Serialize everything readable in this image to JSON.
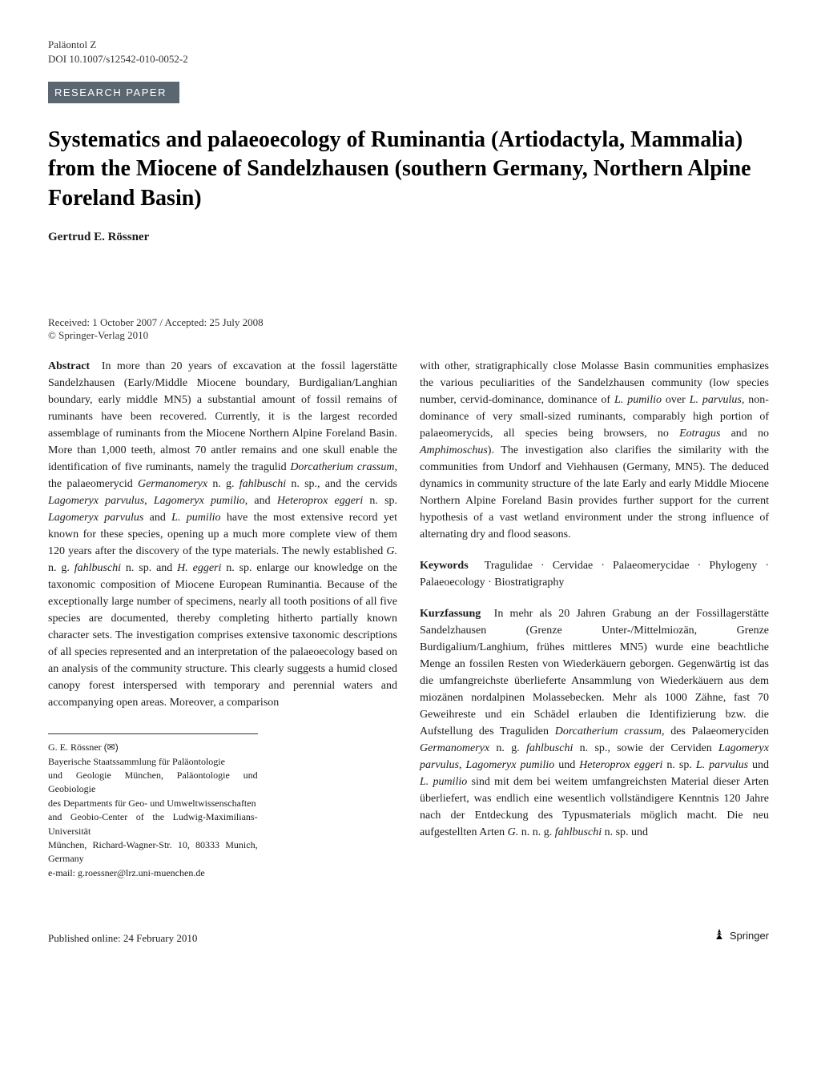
{
  "header": {
    "journal": "Paläontol Z",
    "doi": "DOI 10.1007/s12542-010-0052-2",
    "paper_type": "RESEARCH PAPER"
  },
  "title": "Systematics and palaeoecology of Ruminantia (Artiodactyla, Mammalia) from the Miocene of Sandelzhausen (southern Germany, Northern Alpine Foreland Basin)",
  "author": "Gertrud E. Rössner",
  "dates": "Received: 1 October 2007 / Accepted: 25 July 2008",
  "copyright": "© Springer-Verlag 2010",
  "abstract_label": "Abstract",
  "abstract_html": "In more than 20 years of excavation at the fossil lagerstätte Sandelzhausen (Early/Middle Miocene boundary, Burdigalian/Langhian boundary, early middle MN5) a substantial amount of fossil remains of ruminants have been recovered. Currently, it is the largest recorded assemblage of ruminants from the Miocene Northern Alpine Foreland Basin. More than 1,000 teeth, almost 70 antler remains and one skull enable the identification of five ruminants, namely the tragulid <span class=\"italic\">Dorcatherium crassum</span>, the palaeomerycid <span class=\"italic\">Germanomeryx</span> n. g. <span class=\"italic\">fahlbuschi</span> n. sp., and the cervids <span class=\"italic\">Lagomeryx parvulus</span>, <span class=\"italic\">Lagomeryx pumilio</span>, and <span class=\"italic\">Heteroprox eggeri</span> n. sp. <span class=\"italic\">Lagomeryx parvulus</span> and <span class=\"italic\">L. pumilio</span> have the most extensive record yet known for these species, opening up a much more complete view of them 120 years after the discovery of the type materials. The newly established <span class=\"italic\">G.</span> n. g. <span class=\"italic\">fahlbuschi</span> n. sp. and <span class=\"italic\">H. eggeri</span> n. sp. enlarge our knowledge on the taxonomic composition of Miocene European Ruminantia. Because of the exceptionally large number of specimens, nearly all tooth positions of all five species are documented, thereby completing hitherto partially known character sets. The investigation comprises extensive taxonomic descriptions of all species represented and an interpretation of the palaeoecology based on an analysis of the community structure. This clearly suggests a humid closed canopy forest interspersed with temporary and perennial waters and accompanying open areas. Moreover, a comparison",
  "abstract_right_html": "with other, stratigraphically close Molasse Basin communities emphasizes the various peculiarities of the Sandelzhausen community (low species number, cervid-dominance, dominance of <span class=\"italic\">L. pumilio</span> over <span class=\"italic\">L. parvulus</span>, non-dominance of very small-sized ruminants, comparably high portion of palaeomerycids, all species being browsers, no <span class=\"italic\">Eotragus</span> and no <span class=\"italic\">Amphimoschus</span>). The investigation also clarifies the similarity with the communities from Undorf and Viehhausen (Germany, MN5). The deduced dynamics in community structure of the late Early and early Middle Miocene Northern Alpine Foreland Basin provides further support for the current hypothesis of a vast wetland environment under the strong influence of alternating dry and flood seasons.",
  "keywords_label": "Keywords",
  "keywords": "Tragulidae · Cervidae · Palaeomerycidae · Phylogeny · Palaeoecology · Biostratigraphy",
  "kurz_label": "Kurzfassung",
  "kurz_html": "In mehr als 20 Jahren Grabung an der Fossillagerstätte Sandelzhausen (Grenze Unter-/Mittelmiozän, Grenze Burdigalium/Langhium, frühes mittleres MN5) wurde eine beachtliche Menge an fossilen Resten von Wiederkäuern geborgen. Gegenwärtig ist das die umfangreichste überlieferte Ansammlung von Wiederkäuern aus dem miozänen nordalpinen Molassebecken. Mehr als 1000 Zähne, fast 70 Geweihreste und ein Schädel erlauben die Identifizierung bzw. die Aufstellung des Traguliden <span class=\"italic\">Dorcatherium crassum</span>, des Palaeomeryciden <span class=\"italic\">Germanomeryx</span> n. g. <span class=\"italic\">fahlbuschi</span> n. sp., sowie der Cerviden <span class=\"italic\">Lagomeryx parvulus</span>, <span class=\"italic\">Lagomeryx pumilio</span> und <span class=\"italic\">Heteroprox eggeri</span> n. sp. <span class=\"italic\">L. parvulus</span> und <span class=\"italic\">L. pumilio</span> sind mit dem bei weitem umfangreichsten Material dieser Arten überliefert, was endlich eine wesentlich vollständigere Kenntnis 120 Jahre nach der Entdeckung des Typusmaterials möglich macht. Die neu aufgestellten Arten <span class=\"italic\">G.</span> n. n. g. <span class=\"italic\">fahlbuschi</span> n. sp. und",
  "affiliation": {
    "name": "G. E. Rössner",
    "lines": [
      "Bayerische Staatssammlung für Paläontologie",
      "und Geologie München, Paläontologie und Geobiologie",
      "des Departments für Geo- und Umweltwissenschaften",
      "and Geobio-Center of the Ludwig-Maximilians-Universität",
      "München, Richard-Wagner-Str. 10, 80333 Munich, Germany",
      "e-mail: g.roessner@lrz.uni-muenchen.de"
    ]
  },
  "footer": {
    "published": "Published online: 24 February 2010",
    "springer": "Springer"
  },
  "colors": {
    "paper_type_bg": "#5a6670",
    "text": "#1a1a1a"
  }
}
